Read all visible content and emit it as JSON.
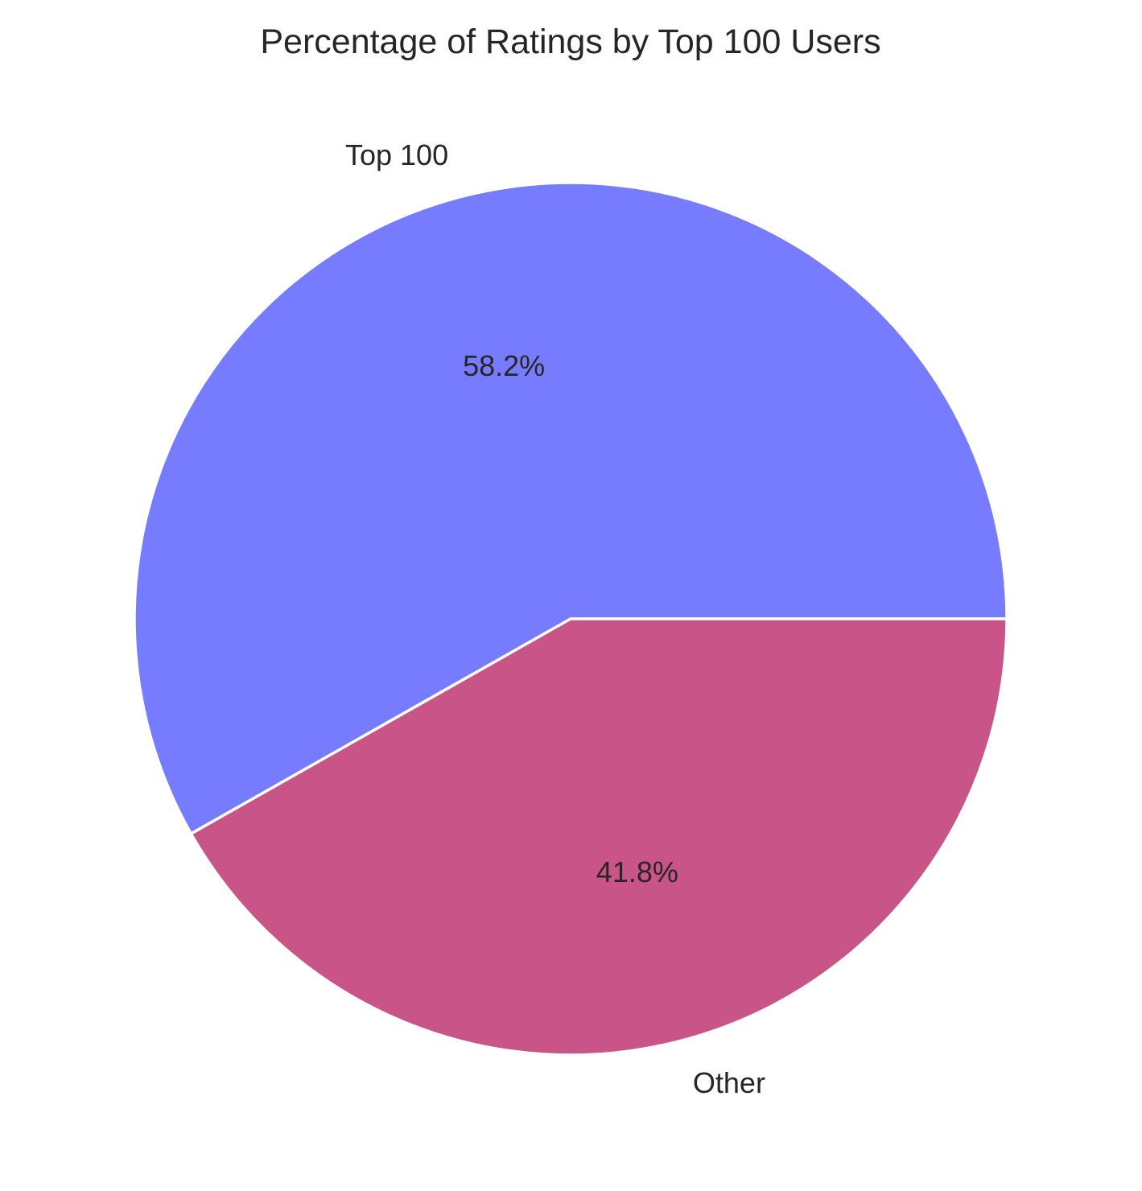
{
  "chart_data": {
    "type": "pie",
    "title": "Percentage of Ratings by Top 100 Users",
    "start_angle_deg": 0,
    "direction": "counterclockwise",
    "slices": [
      {
        "label": "Top 100",
        "value": 58.2,
        "value_label": "58.2%",
        "color": "#777bfe"
      },
      {
        "label": "Other",
        "value": 41.8,
        "value_label": "41.8%",
        "color": "#c95487"
      }
    ],
    "slice_edge_color": "#ffffff"
  }
}
